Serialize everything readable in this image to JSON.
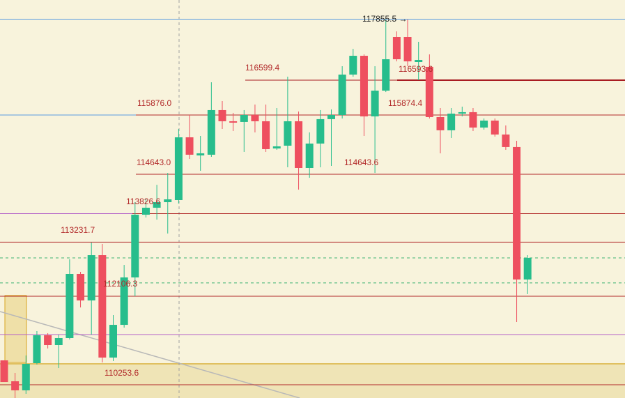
{
  "chart_data": {
    "type": "candlestick",
    "ylim": [
      109989,
      118268.5
    ],
    "up_color": "#27bd8c",
    "down_color": "#ee4f5f",
    "open": [
      110772,
      110337,
      110148,
      110714,
      111294,
      111091,
      111236,
      112570,
      112018,
      112961,
      110830,
      111511,
      112497,
      113802,
      113947,
      114063,
      114107,
      115412,
      115035,
      115050,
      115978,
      115746,
      115732,
      115876,
      115746,
      115180,
      115238,
      115746,
      114774,
      115282,
      115790,
      115876,
      116717,
      117108,
      115847,
      116383,
      117500,
      117500,
      116978,
      116877,
      115833,
      115558,
      115905,
      115935,
      115615,
      115760,
      115470,
      115210,
      112454
    ],
    "high": [
      110772,
      110511,
      110874,
      111381,
      111337,
      111308,
      112874,
      112613,
      113222,
      113193,
      111714,
      112758,
      114063,
      114136,
      114424,
      114672,
      115586,
      115876,
      115441,
      116557,
      116166,
      115920,
      115978,
      116094,
      116094,
      116021,
      116673,
      115949,
      115514,
      115978,
      115992,
      116891,
      117253,
      117137,
      116891,
      117862,
      117616,
      117862,
      117399,
      117137,
      116021,
      116021,
      116050,
      116021,
      115804,
      115804,
      115659,
      115340,
      112961
    ],
    "low": [
      110322,
      109989,
      110076,
      110685,
      111019,
      110612,
      111207,
      111873,
      111308,
      110728,
      110757,
      111453,
      112106,
      113744,
      113700,
      113410,
      114034,
      114962,
      114716,
      115006,
      115586,
      115543,
      115108,
      115514,
      115108,
      115152,
      114788,
      114324,
      114570,
      114788,
      114817,
      115804,
      116673,
      115441,
      114672,
      116354,
      116992,
      116891,
      116601,
      115804,
      115079,
      115398,
      115847,
      115543,
      115572,
      115427,
      115152,
      111569,
      112150
    ],
    "close": [
      110322,
      110148,
      110699,
      111294,
      111091,
      111236,
      112570,
      112018,
      112961,
      110830,
      111511,
      112497,
      113802,
      113947,
      114063,
      114121,
      115412,
      115050,
      115079,
      115978,
      115746,
      115717,
      115876,
      115746,
      115166,
      115224,
      115746,
      114774,
      115282,
      115790,
      115876,
      116717,
      117108,
      115847,
      116383,
      117036,
      117036,
      116992,
      117021,
      115833,
      115558,
      115905,
      115935,
      115615,
      115760,
      115470,
      115210,
      112454,
      112904
    ],
    "levels": [
      {
        "value": 117870,
        "color": "#5a9be0",
        "style": "solid"
      },
      {
        "value": 116601,
        "color": "#a81c22",
        "style": "solid"
      },
      {
        "value": 115876,
        "color": "#5a9be0",
        "style": "solid"
      },
      {
        "value": 115876,
        "color": "#b22a2a",
        "style": "solid"
      },
      {
        "value": 114643,
        "color": "#b22a2a",
        "style": "solid"
      },
      {
        "value": 113824,
        "color": "#b460c8",
        "style": "solid"
      },
      {
        "value": 113824,
        "color": "#b22a2a",
        "style": "solid"
      },
      {
        "value": 113231,
        "color": "#b22a2a",
        "style": "solid"
      },
      {
        "value": 112904,
        "color": "#3cb371",
        "style": "dashed"
      },
      {
        "value": 112383,
        "color": "#3cb371",
        "style": "dashed"
      },
      {
        "value": 112106,
        "color": "#b22a2a",
        "style": "solid"
      },
      {
        "value": 111308,
        "color": "#b460c8",
        "style": "solid"
      },
      {
        "value": 110264,
        "color": "#b22a2a",
        "style": "solid"
      }
    ],
    "annotations": [
      {
        "value": 117855.5,
        "label": "117855.5 →"
      },
      116599.4,
      116593.6,
      {
        "value": 115876.0,
        "label": "115876.0"
      },
      115874.4,
      {
        "value": 114643.0,
        "label": "114643.0"
      },
      114643.6,
      113826.6,
      113231.7,
      112106.3,
      110253.6
    ]
  }
}
